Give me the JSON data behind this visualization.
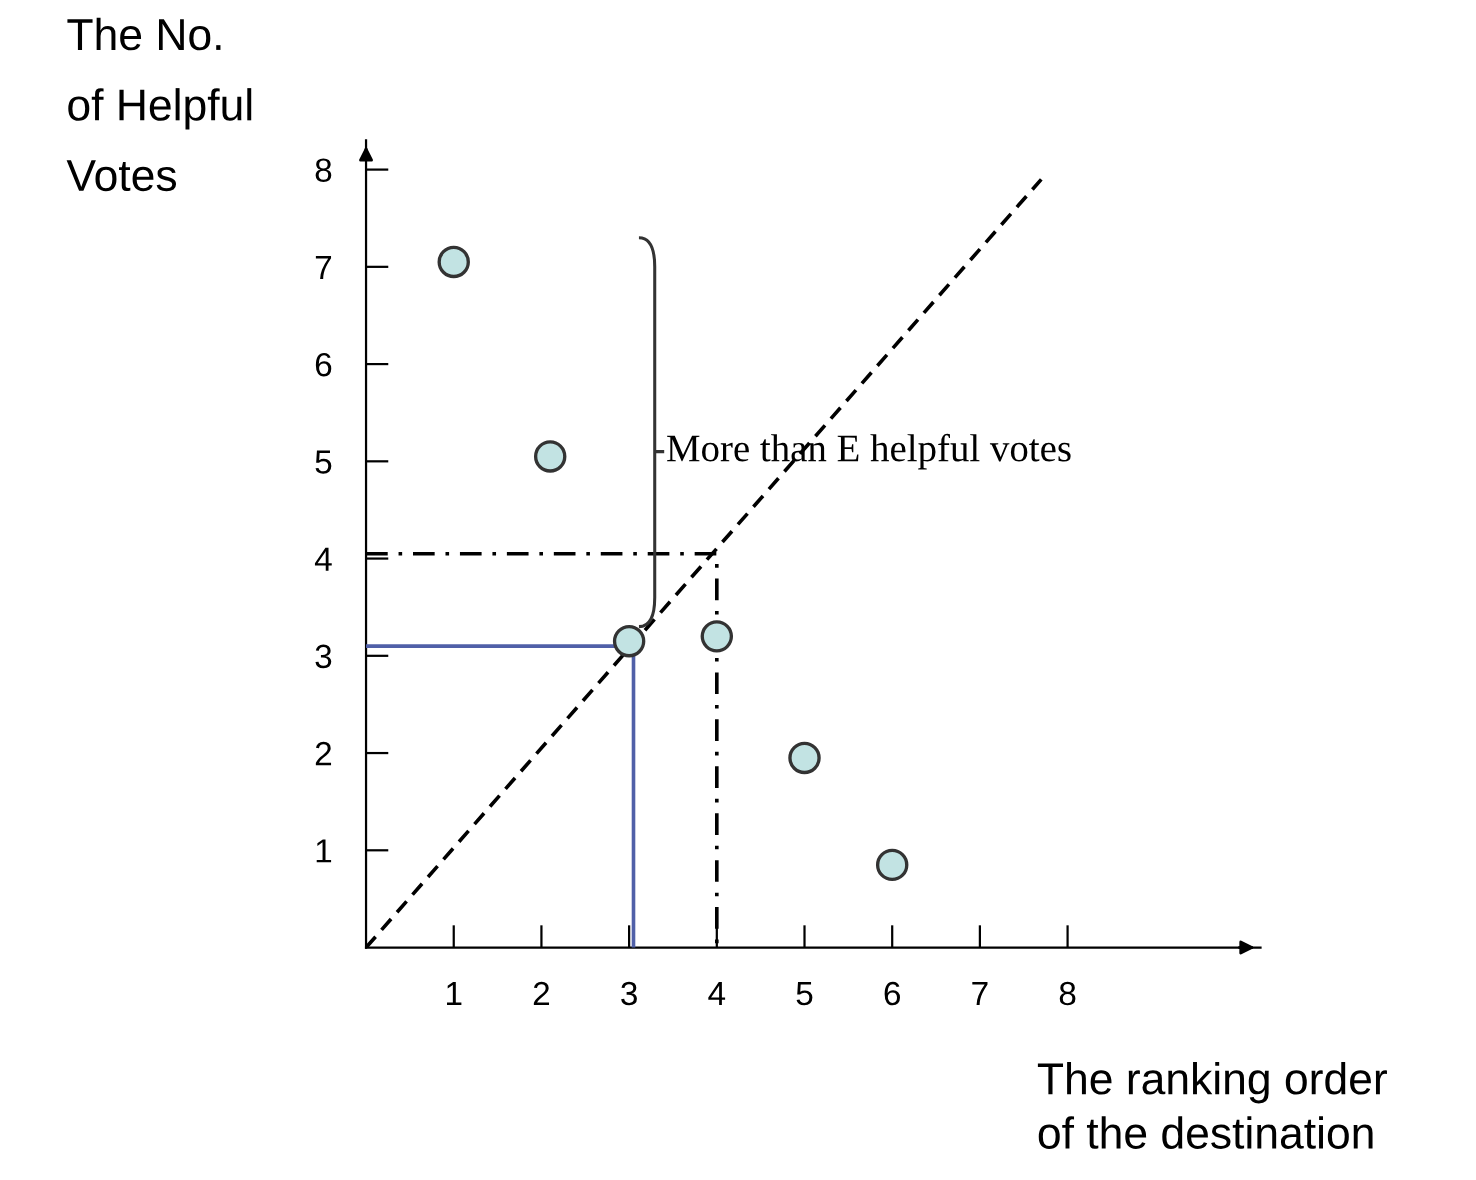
{
  "chart_data": {
    "type": "scatter",
    "xlabel": "The ranking order\nof the destination",
    "ylabel": "The No.\nof Helpful\nVotes",
    "xlim": [
      0,
      10.2
    ],
    "ylim": [
      0,
      8.3
    ],
    "xticks": [
      1,
      2,
      3,
      4,
      5,
      6,
      7,
      8
    ],
    "yticks": [
      1,
      2,
      3,
      4,
      5,
      6,
      7,
      8
    ],
    "grid": false,
    "marker": "circle",
    "series": [
      {
        "color": "#c2e3e3",
        "x": [
          1,
          2.1,
          3,
          4,
          5,
          6
        ],
        "values": [
          7.05,
          5.05,
          3.15,
          3.2,
          1.95,
          0.85
        ]
      },
      {
        "type": "line",
        "marker": "none",
        "color": "#000000",
        "line_style": "dashed",
        "x": [
          0,
          7.7
        ],
        "values": [
          0,
          7.9
        ]
      },
      {
        "type": "line",
        "marker": "none",
        "color": "#000000",
        "line_style": "dashdot",
        "x": [
          0,
          4,
          4
        ],
        "values": [
          4.05,
          4.05,
          0
        ]
      },
      {
        "type": "line",
        "marker": "none",
        "color": "#5060a8",
        "line_style": "solid",
        "x": [
          0,
          3.05,
          3.05
        ],
        "values": [
          3.1,
          3.1,
          0
        ]
      }
    ],
    "annotations": [
      {
        "text": "More than E helpful votes",
        "x": 3,
        "y": 3.15
      }
    ]
  }
}
